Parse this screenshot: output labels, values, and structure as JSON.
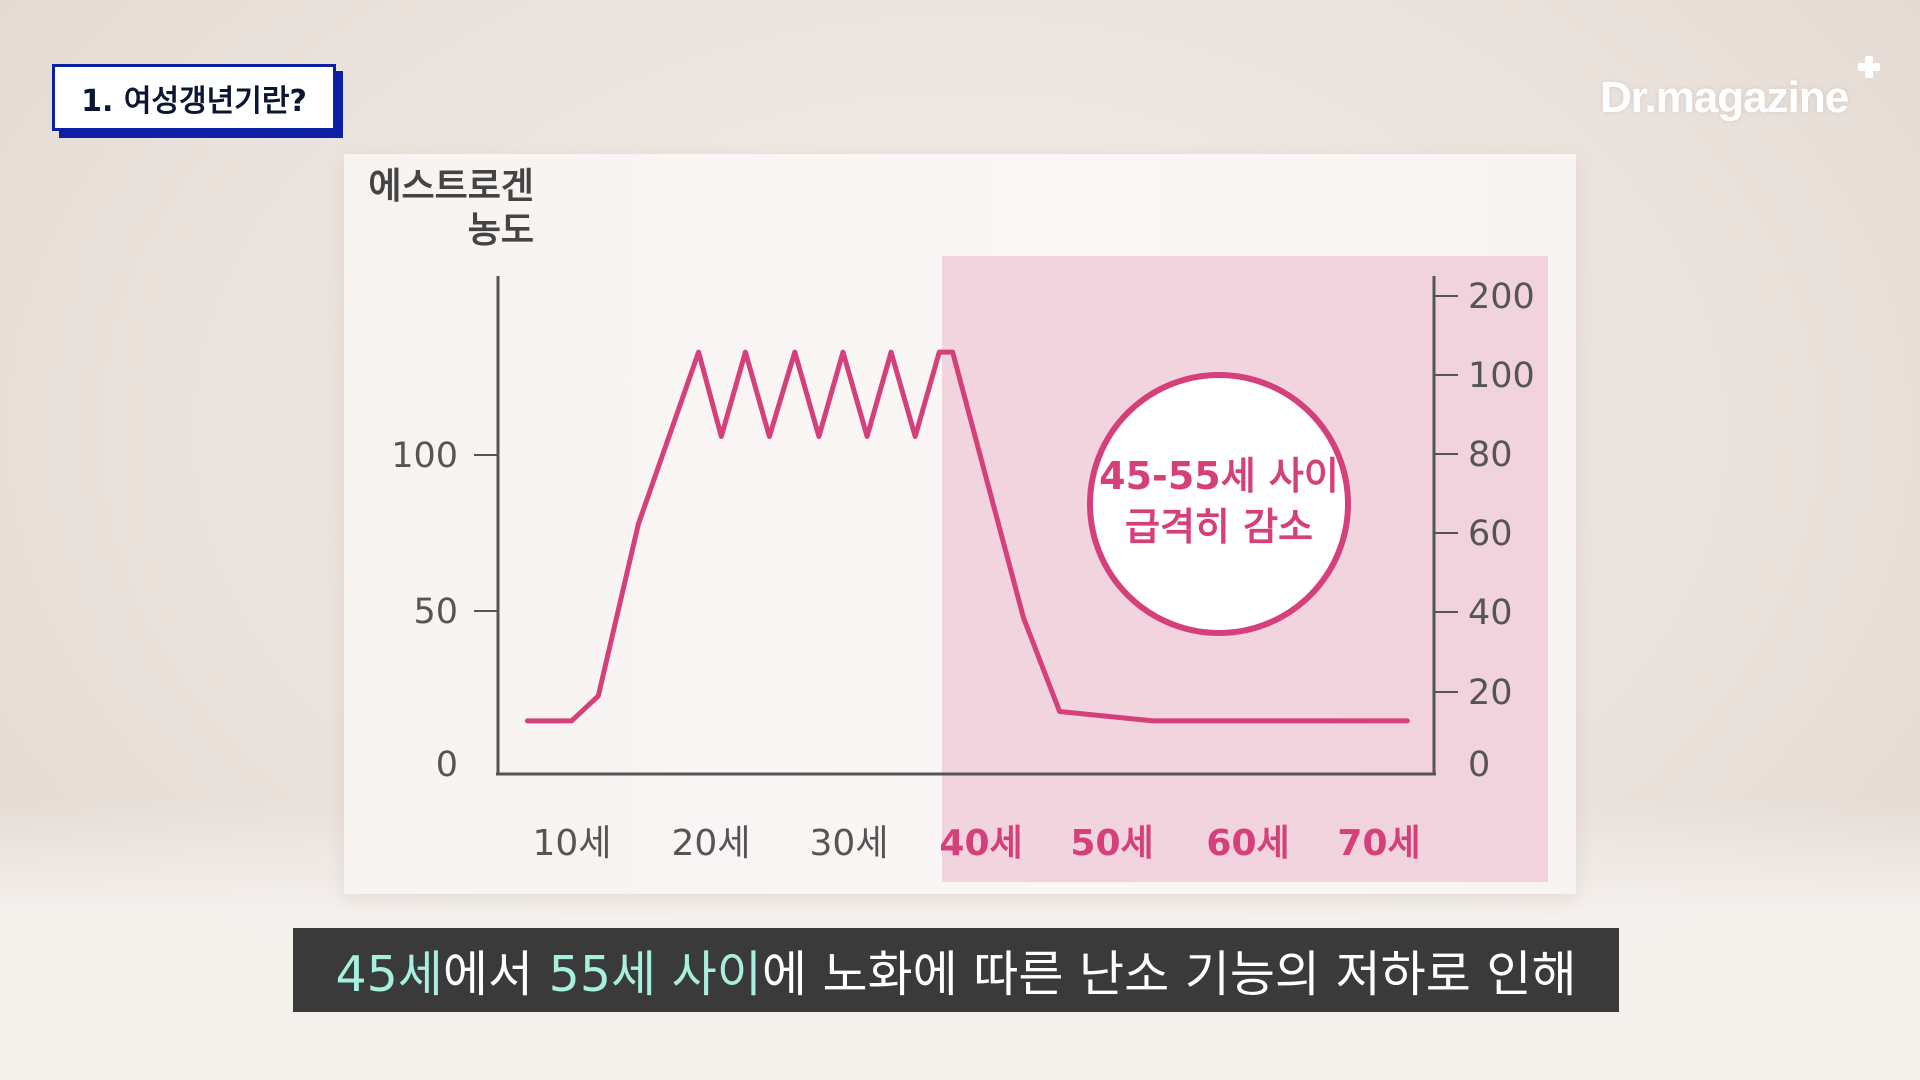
{
  "topic_badge": "1. 여성갱년기란?",
  "logo": "Dr.magazine",
  "colors": {
    "accent": "#d5407a",
    "badge_border": "#0d1fa3",
    "subtitle_bg": "#3b3a3a",
    "subtitle_highlight": "#a7efde",
    "highlight_region": "#edc6d4",
    "axis": "#555555"
  },
  "chart_data": {
    "type": "line",
    "ylabel_line1": "에스트로겐",
    "ylabel_line2": "농도",
    "x_categories": [
      "10세",
      "20세",
      "30세",
      "40세",
      "50세",
      "60세",
      "70세"
    ],
    "highlighted_categories": [
      "40세",
      "50세",
      "60세",
      "70세"
    ],
    "y_left_ticks": [
      "0",
      "50",
      "100"
    ],
    "y_right_ticks": [
      "0",
      "20",
      "40",
      "60",
      "80",
      "100",
      "200"
    ],
    "series": [
      {
        "x": [
          7.2,
          10.5,
          12.5,
          15.5,
          20.0,
          21.7,
          23.5,
          25.3,
          27.2,
          29.0,
          30.8,
          32.6,
          34.4,
          36.2,
          38.0,
          39.0,
          44.3,
          47.0,
          54.0,
          60.0,
          66.0,
          73.0
        ],
        "y": [
          17,
          17,
          25,
          80,
          135,
          108,
          135,
          108,
          135,
          108,
          135,
          108,
          135,
          108,
          135,
          135,
          50,
          20,
          17,
          17,
          17,
          17
        ]
      }
    ],
    "annotation_line1": "45-55세 사이",
    "annotation_line2": "급격히 감소",
    "xlim": [
      5,
      75
    ],
    "ylim": [
      0,
      160
    ],
    "grid": false,
    "legend": "none"
  },
  "subtitle": {
    "hl1": "45세",
    "t1": "에서 ",
    "hl2": "55세 사이",
    "t2": "에 노화에 따른 난소 기능의 저하로 인해"
  }
}
